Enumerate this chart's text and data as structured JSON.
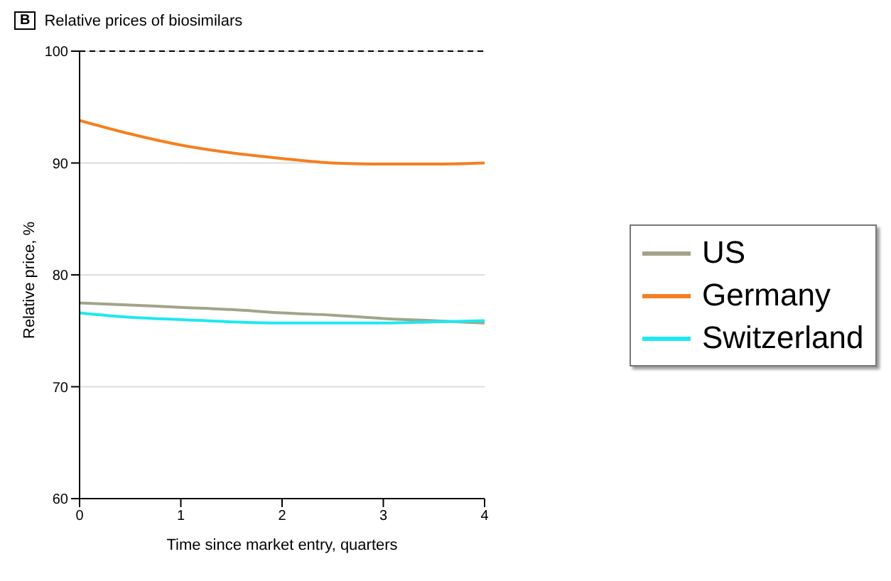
{
  "chart_data": {
    "type": "line",
    "title": "Relative prices of biosimilars",
    "annotations": [
      "B"
    ],
    "xlabel": "Time since market entry, quarters",
    "ylabel": "Relative price, %",
    "x": [
      0,
      0.5,
      1,
      1.5,
      2,
      2.5,
      3,
      3.5,
      4
    ],
    "series": [
      {
        "name": "US",
        "color": "#a3a38a",
        "values": [
          77.5,
          77.3,
          77.1,
          76.9,
          76.6,
          76.4,
          76.1,
          75.9,
          75.7
        ]
      },
      {
        "name": "Germany",
        "color": "#f57f20",
        "values": [
          93.8,
          92.6,
          91.6,
          90.9,
          90.4,
          90.0,
          89.9,
          89.9,
          90.0
        ]
      },
      {
        "name": "Switzerland",
        "color": "#1fe8f0",
        "values": [
          76.6,
          76.2,
          76.0,
          75.8,
          75.7,
          75.7,
          75.7,
          75.8,
          75.9
        ]
      }
    ],
    "xlim": [
      0,
      4
    ],
    "xticks": [
      0,
      1,
      2,
      3,
      4
    ],
    "ylim": [
      60,
      100
    ],
    "yticks": [
      60,
      70,
      80,
      90,
      100
    ],
    "ref_lines": [
      {
        "axis": "y",
        "value": 100,
        "color": "#000000",
        "line_style": "dashed"
      }
    ],
    "grid": "y",
    "legend": "right",
    "marker": "none",
    "line_style": "solid"
  }
}
